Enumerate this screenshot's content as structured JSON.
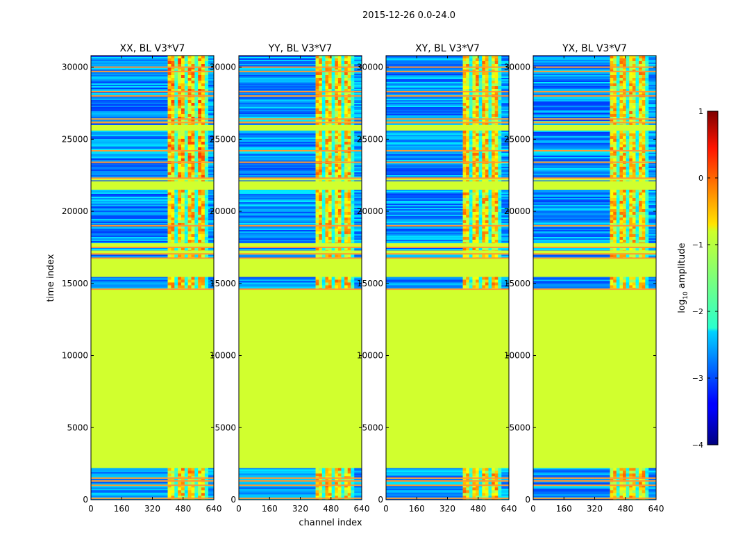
{
  "figure": {
    "suptitle": "2015-12-26 0.0-24.0",
    "xlabel": "channel index",
    "ylabel": "time index"
  },
  "colorbar": {
    "label_prefix": "log",
    "label_sub": "10",
    "label_suffix": " amplitude",
    "range": [
      -4,
      1
    ],
    "ticks": [
      "1",
      "0",
      "−1",
      "−2",
      "−3",
      "−4"
    ],
    "tick_values": [
      1,
      0,
      -1,
      -2,
      -3,
      -4
    ]
  },
  "chart_data": {
    "type": "heatmap",
    "x_range": [
      0,
      640
    ],
    "y_range": [
      0,
      30800
    ],
    "x_ticks": [
      0,
      160,
      320,
      480,
      640
    ],
    "x_tick_labels": [
      "0",
      "160",
      "320",
      "480",
      "640"
    ],
    "y_ticks": [
      0,
      5000,
      10000,
      15000,
      20000,
      25000,
      30000
    ],
    "y_tick_labels": [
      "0",
      "5000",
      "10000",
      "15000",
      "20000",
      "25000",
      "30000"
    ],
    "panels": [
      {
        "title": "XX, BL V3*V7",
        "bright_start": 400,
        "bright_end": 610
      },
      {
        "title": "YY, BL V3*V7",
        "bright_start": 400,
        "bright_end": 600
      },
      {
        "title": "XY, BL V3*V7",
        "bright_start": 400,
        "bright_end": 600
      },
      {
        "title": "YX, BL V3*V7",
        "bright_start": 400,
        "bright_end": 600
      }
    ],
    "data_bands": [
      [
        0,
        2200
      ],
      [
        14600,
        15450
      ],
      [
        16800,
        17000
      ],
      [
        17300,
        17500
      ],
      [
        17800,
        21500
      ],
      [
        22100,
        22150
      ],
      [
        22300,
        25600
      ],
      [
        26000,
        26200
      ],
      [
        26250,
        30800
      ]
    ],
    "flag_value": -1.1,
    "flag_lines": [
      100,
      1000,
      1300,
      1500,
      14600,
      16750,
      17050,
      17500,
      19000,
      22300,
      23400,
      24200,
      26150,
      26400,
      28000,
      28300,
      29700,
      30000
    ],
    "colormap": "jet"
  }
}
